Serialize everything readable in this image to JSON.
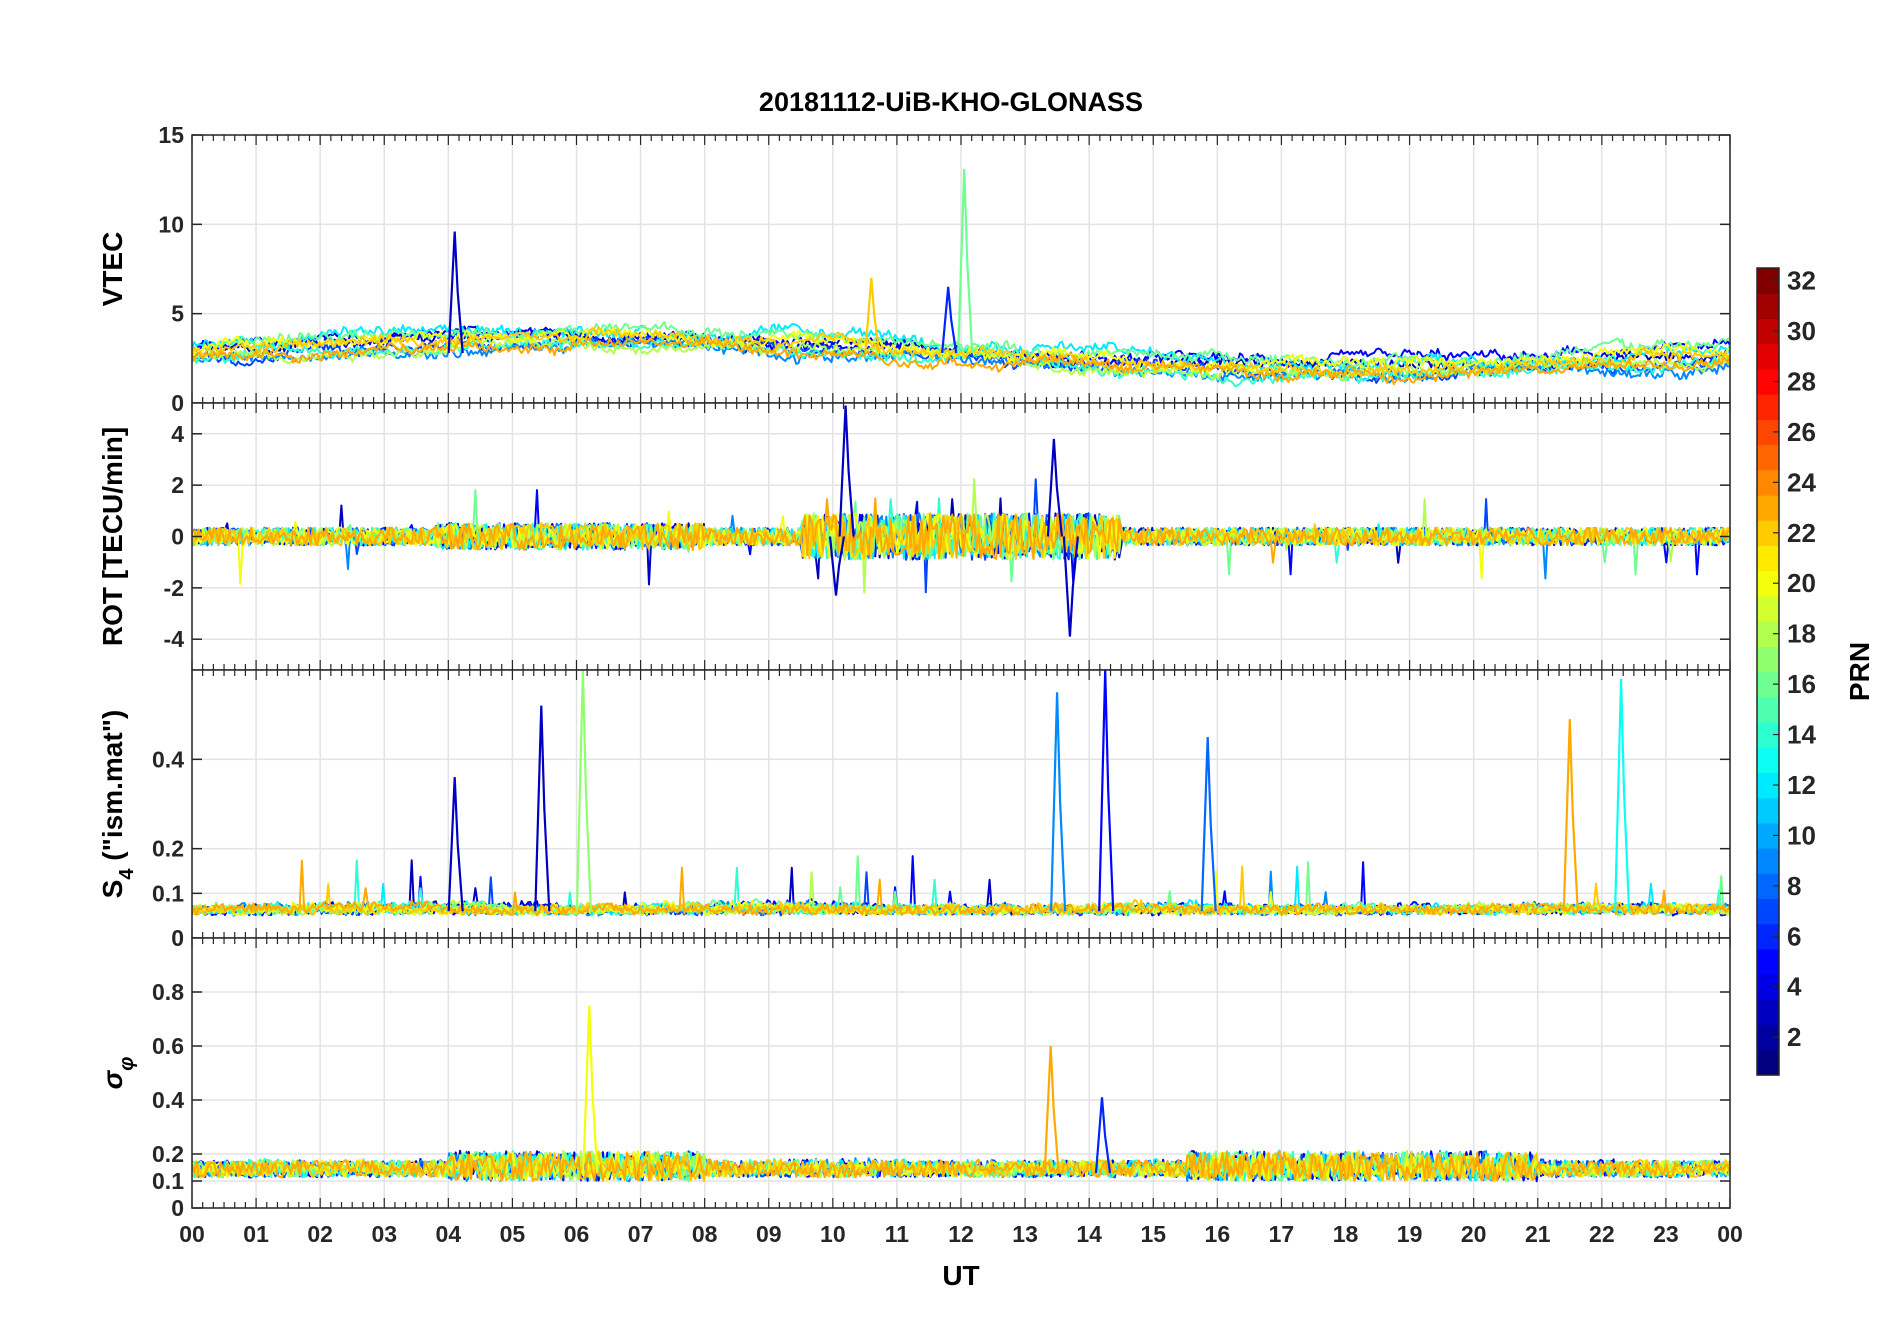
{
  "chart_data": {
    "type": "line",
    "title": "20181112-UiB-KHO-GLONASS",
    "xlabel": "UT",
    "x_range_hours": [
      0,
      24
    ],
    "x_tick_labels": [
      "00",
      "01",
      "02",
      "03",
      "04",
      "05",
      "06",
      "07",
      "08",
      "09",
      "10",
      "11",
      "12",
      "13",
      "14",
      "15",
      "16",
      "17",
      "18",
      "19",
      "20",
      "21",
      "22",
      "23",
      "00"
    ],
    "grid": true,
    "panels": [
      {
        "key": "vtec",
        "ylabel": "VTEC",
        "ylim": [
          0,
          15
        ],
        "yticks": [
          0,
          5,
          10,
          15
        ],
        "ytick_labels": [
          "0",
          "5",
          "10",
          "15"
        ],
        "baseline": 2.8,
        "noise": 0.45,
        "spikes": [
          {
            "t": 4.1,
            "v": 9.6,
            "prn": 3
          },
          {
            "t": 12.05,
            "v": 13.1,
            "prn": 16
          },
          {
            "t": 10.6,
            "v": 7.0,
            "prn": 22
          },
          {
            "t": 11.8,
            "v": 6.5,
            "prn": 6
          }
        ]
      },
      {
        "key": "rot",
        "ylabel": "ROT [TECU/min]",
        "ylim": [
          -5.2,
          5.2
        ],
        "yticks": [
          -4,
          -2,
          0,
          2,
          4
        ],
        "ytick_labels": [
          "-4",
          "-2",
          "0",
          "2",
          "4"
        ],
        "baseline": 0,
        "noise": 0.35,
        "spikes": [
          {
            "t": 10.2,
            "v": 5.1,
            "prn": 3
          },
          {
            "t": 13.7,
            "v": -3.9,
            "prn": 3
          },
          {
            "t": 13.45,
            "v": 3.8,
            "prn": 3
          },
          {
            "t": 10.05,
            "v": -2.3,
            "prn": 3
          }
        ]
      },
      {
        "key": "s4",
        "ylabel": "S4 (\"ism.mat\")",
        "ylim": [
          0,
          0.6
        ],
        "yticks": [
          0,
          0.1,
          0.2,
          0.4
        ],
        "ytick_labels": [
          "0",
          "0.1",
          "0.2",
          "0.4"
        ],
        "baseline": 0.06,
        "noise": 0.02,
        "spikes": [
          {
            "t": 5.45,
            "v": 0.52,
            "prn": 3
          },
          {
            "t": 6.1,
            "v": 0.6,
            "prn": 17
          },
          {
            "t": 14.25,
            "v": 0.6,
            "prn": 5
          },
          {
            "t": 13.5,
            "v": 0.55,
            "prn": 9
          },
          {
            "t": 21.5,
            "v": 0.49,
            "prn": 23
          },
          {
            "t": 22.3,
            "v": 0.58,
            "prn": 13
          },
          {
            "t": 15.85,
            "v": 0.45,
            "prn": 8
          },
          {
            "t": 4.1,
            "v": 0.36,
            "prn": 3
          }
        ]
      },
      {
        "key": "sigma_phi",
        "ylabel": "σφ",
        "ylim": [
          0,
          1
        ],
        "yticks": [
          0,
          0.1,
          0.2,
          0.4,
          0.6,
          0.8
        ],
        "ytick_labels": [
          "0",
          "0.1",
          "0.2",
          "0.4",
          "0.6",
          "0.8"
        ],
        "baseline": 0.13,
        "noise": 0.03,
        "spikes": [
          {
            "t": 6.2,
            "v": 0.75,
            "prn": 20
          },
          {
            "t": 13.4,
            "v": 0.6,
            "prn": 23
          },
          {
            "t": 14.2,
            "v": 0.41,
            "prn": 6
          }
        ]
      }
    ],
    "colorbar": {
      "label": "PRN",
      "range": [
        1,
        32
      ],
      "ticks": [
        2,
        4,
        6,
        8,
        10,
        12,
        14,
        16,
        18,
        20,
        22,
        24,
        26,
        28,
        30,
        32
      ],
      "tick_labels": [
        "2",
        "4",
        "6",
        "8",
        "10",
        "12",
        "14",
        "16",
        "18",
        "20",
        "22",
        "24",
        "26",
        "28",
        "30",
        "32"
      ],
      "colormap": "jet"
    },
    "series_prns": [
      3,
      5,
      7,
      9,
      12,
      14,
      16,
      18,
      20,
      22,
      23
    ]
  }
}
